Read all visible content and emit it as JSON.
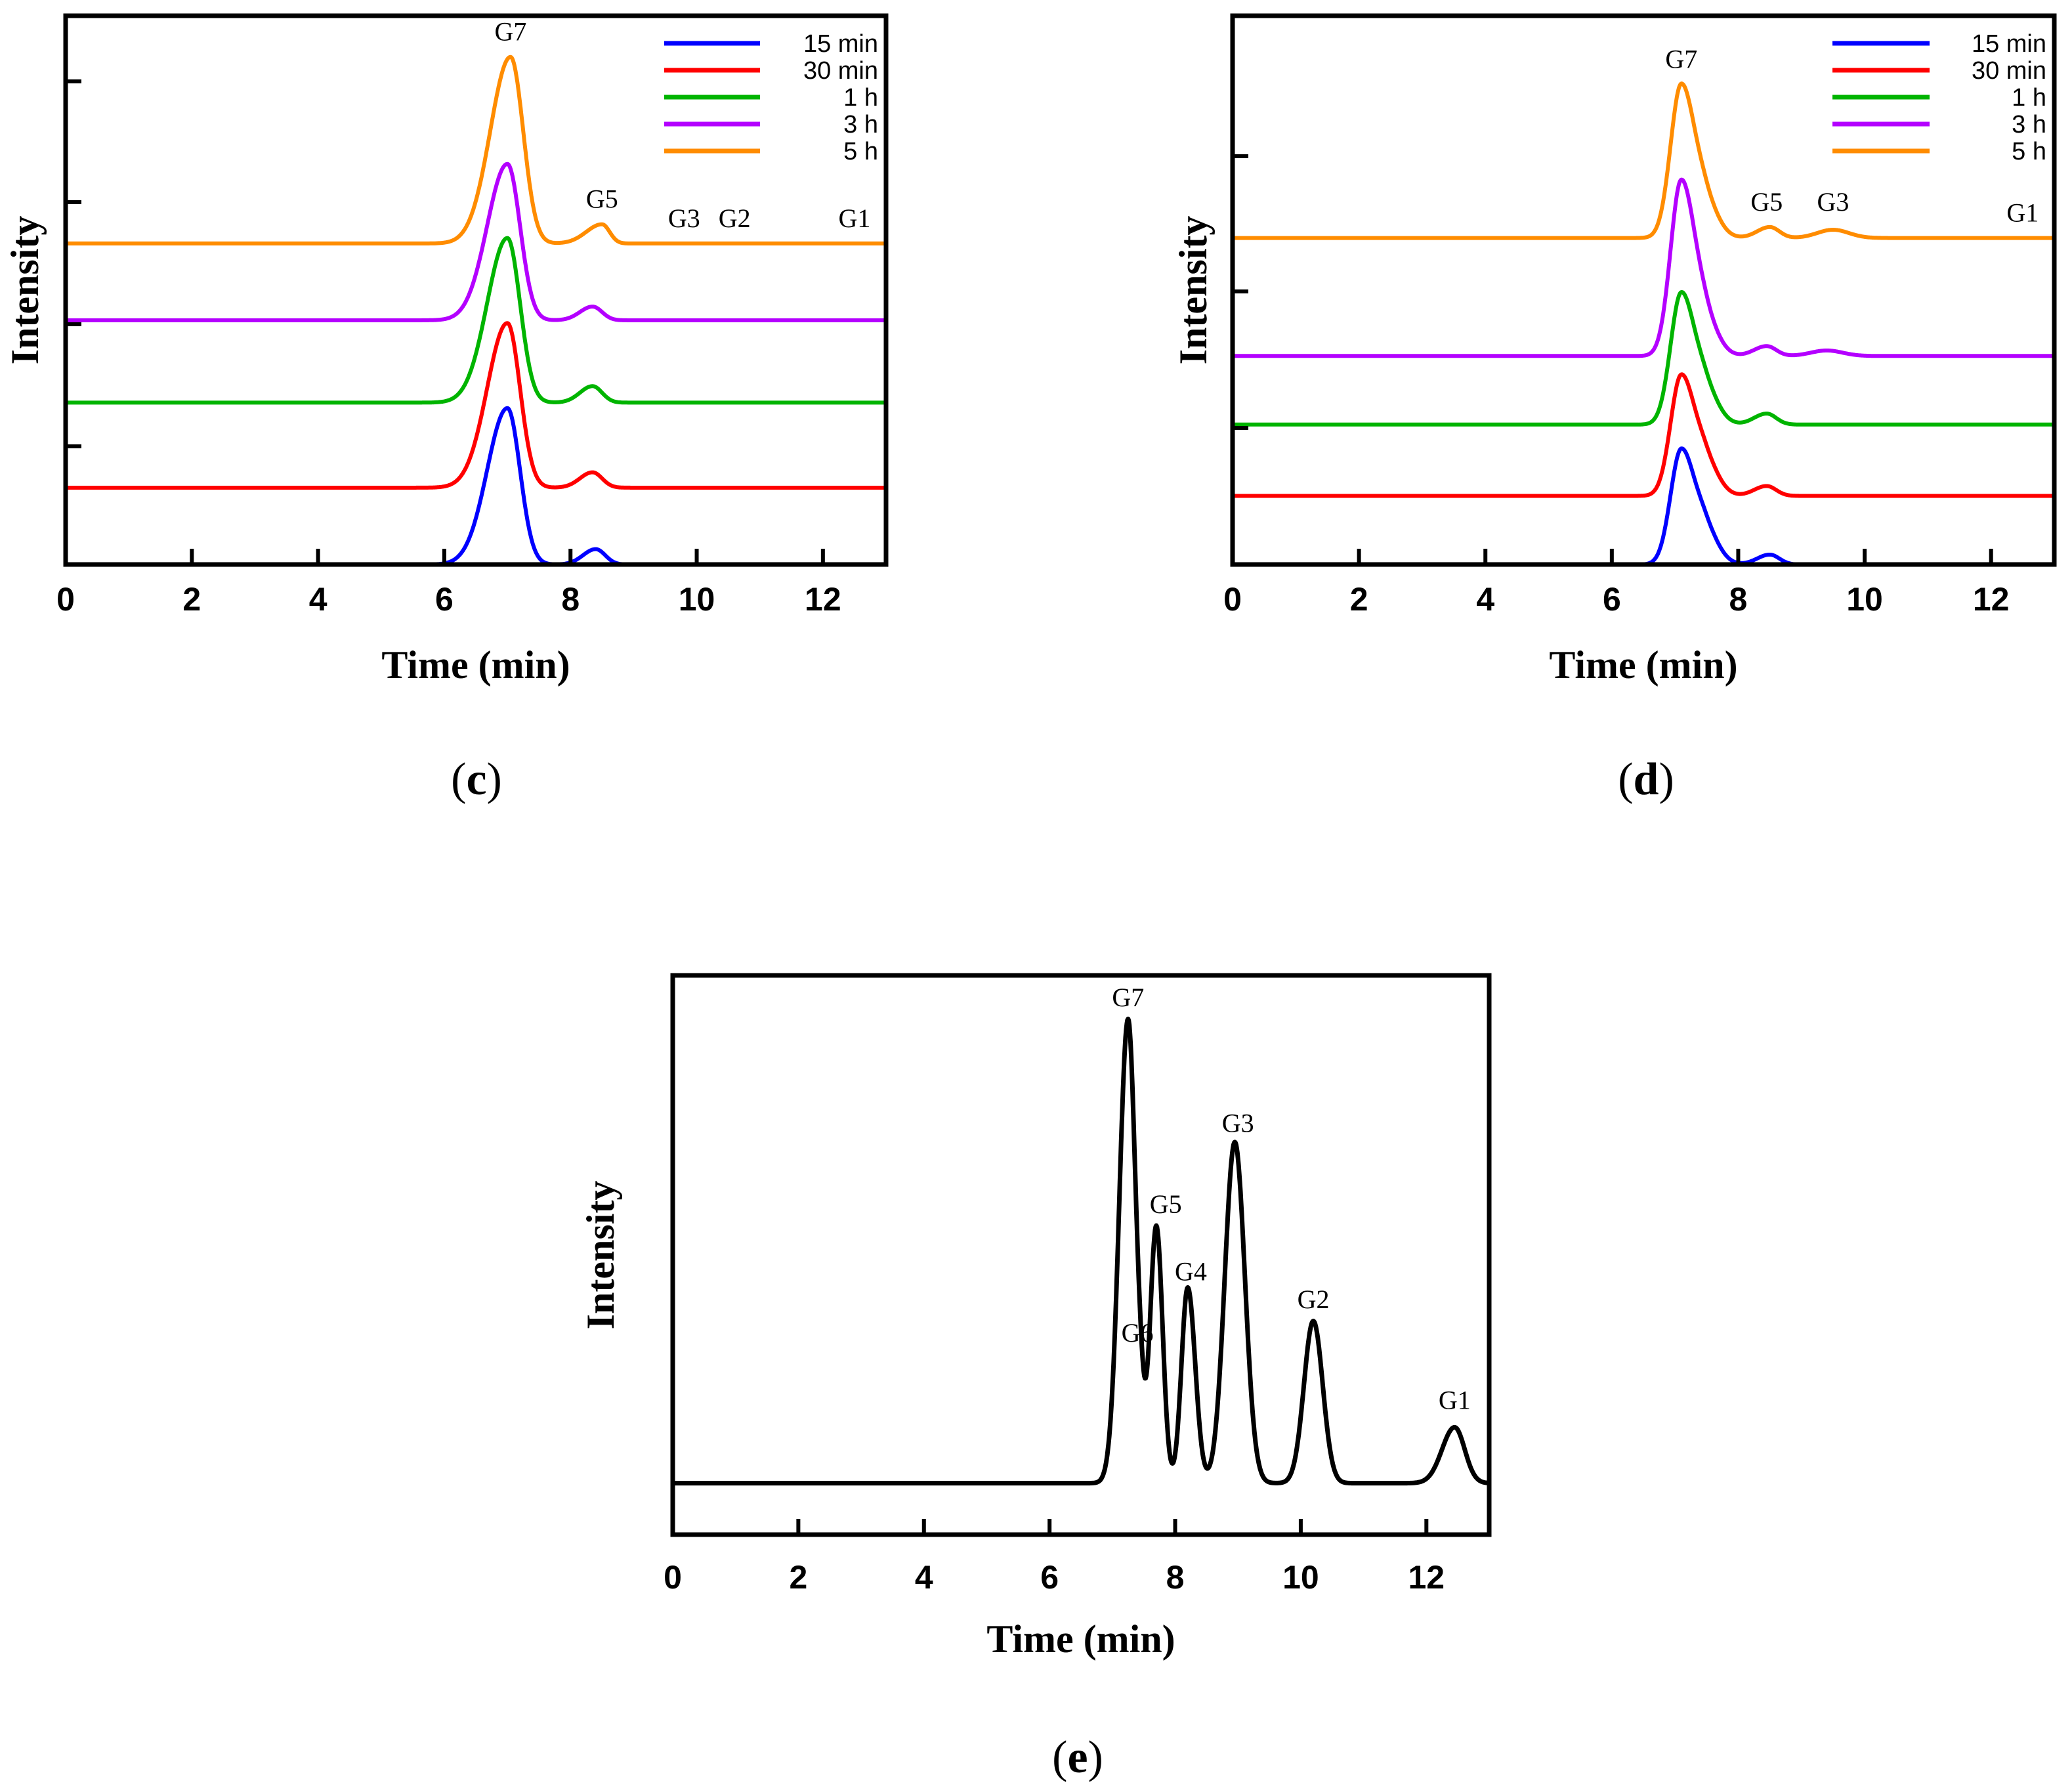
{
  "chart_data": [
    {
      "type": "line",
      "panel": "c",
      "caption_open": "(",
      "caption_letter": "c",
      "caption_close": ")",
      "xlabel": "Time (min)",
      "ylabel": "Intensity",
      "xlim": [
        0,
        13
      ],
      "ylim": [
        0,
        1
      ],
      "xticks": [
        0,
        2,
        4,
        6,
        8,
        10,
        12
      ],
      "legend_position": "top-right",
      "series": [
        {
          "name": "15 min",
          "color": "#0000ff",
          "baseline": 0.0,
          "peaks": [
            {
              "t": 7.0,
              "h": 0.285,
              "wl": 0.32,
              "wr": 0.2
            },
            {
              "t": 8.4,
              "h": 0.028,
              "wl": 0.2,
              "wr": 0.15
            }
          ]
        },
        {
          "name": "30 min",
          "color": "#ff0000",
          "baseline": 0.14,
          "peaks": [
            {
              "t": 7.0,
              "h": 0.3,
              "wl": 0.32,
              "wr": 0.2
            },
            {
              "t": 8.35,
              "h": 0.028,
              "wl": 0.2,
              "wr": 0.15
            }
          ]
        },
        {
          "name": "1 h",
          "color": "#00b400",
          "baseline": 0.295,
          "peaks": [
            {
              "t": 7.0,
              "h": 0.3,
              "wl": 0.32,
              "wr": 0.2
            },
            {
              "t": 8.35,
              "h": 0.03,
              "wl": 0.2,
              "wr": 0.15
            }
          ]
        },
        {
          "name": "3 h",
          "color": "#b400ff",
          "baseline": 0.445,
          "peaks": [
            {
              "t": 7.0,
              "h": 0.285,
              "wl": 0.32,
              "wr": 0.2
            },
            {
              "t": 8.35,
              "h": 0.025,
              "wl": 0.2,
              "wr": 0.15
            }
          ]
        },
        {
          "name": "5 h",
          "color": "#ff8c00",
          "baseline": 0.585,
          "peaks": [
            {
              "t": 7.05,
              "h": 0.34,
              "wl": 0.32,
              "wr": 0.2
            },
            {
              "t": 8.5,
              "h": 0.035,
              "wl": 0.25,
              "wr": 0.12
            }
          ]
        }
      ],
      "annotations": [
        {
          "text": "G7",
          "x": 7.05,
          "y": 0.955
        },
        {
          "text": "G5",
          "x": 8.5,
          "y": 0.65
        },
        {
          "text": "G3",
          "x": 9.8,
          "y": 0.615
        },
        {
          "text": "G2",
          "x": 10.6,
          "y": 0.615
        },
        {
          "text": "G1",
          "x": 12.5,
          "y": 0.615
        }
      ]
    },
    {
      "type": "line",
      "panel": "d",
      "caption_open": "(",
      "caption_letter": "d",
      "caption_close": ")",
      "xlabel": "Time (min)",
      "ylabel": "Intensity",
      "xlim": [
        0,
        13
      ],
      "ylim": [
        0,
        1
      ],
      "xticks": [
        0,
        2,
        4,
        6,
        8,
        10,
        12
      ],
      "legend_position": "top-right",
      "series": [
        {
          "name": "15 min",
          "color": "#0000ff",
          "baseline": 0.0,
          "peaks": [
            {
              "t": 7.1,
              "h": 0.21,
              "wl": 0.17,
              "wr": 0.22
            },
            {
              "t": 7.5,
              "h": 0.05,
              "wl": 0.15,
              "wr": 0.2
            },
            {
              "t": 8.5,
              "h": 0.018,
              "wl": 0.2,
              "wr": 0.15
            }
          ]
        },
        {
          "name": "30 min",
          "color": "#ff0000",
          "baseline": 0.125,
          "peaks": [
            {
              "t": 7.1,
              "h": 0.22,
              "wl": 0.17,
              "wr": 0.22
            },
            {
              "t": 7.5,
              "h": 0.05,
              "wl": 0.15,
              "wr": 0.2
            },
            {
              "t": 8.45,
              "h": 0.018,
              "wl": 0.2,
              "wr": 0.15
            }
          ]
        },
        {
          "name": "1 h",
          "color": "#00b400",
          "baseline": 0.255,
          "peaks": [
            {
              "t": 7.1,
              "h": 0.24,
              "wl": 0.17,
              "wr": 0.22
            },
            {
              "t": 7.5,
              "h": 0.05,
              "wl": 0.15,
              "wr": 0.2
            },
            {
              "t": 8.45,
              "h": 0.02,
              "wl": 0.2,
              "wr": 0.15
            }
          ]
        },
        {
          "name": "3 h",
          "color": "#b400ff",
          "baseline": 0.38,
          "peaks": [
            {
              "t": 7.1,
              "h": 0.32,
              "wl": 0.17,
              "wr": 0.22
            },
            {
              "t": 7.5,
              "h": 0.05,
              "wl": 0.15,
              "wr": 0.2
            },
            {
              "t": 8.45,
              "h": 0.018,
              "wl": 0.2,
              "wr": 0.15
            },
            {
              "t": 9.4,
              "h": 0.01,
              "wl": 0.25,
              "wr": 0.25
            }
          ]
        },
        {
          "name": "5 h",
          "color": "#ff8c00",
          "baseline": 0.595,
          "peaks": [
            {
              "t": 7.1,
              "h": 0.28,
              "wl": 0.17,
              "wr": 0.22
            },
            {
              "t": 7.5,
              "h": 0.05,
              "wl": 0.15,
              "wr": 0.2
            },
            {
              "t": 8.5,
              "h": 0.02,
              "wl": 0.2,
              "wr": 0.15
            },
            {
              "t": 9.5,
              "h": 0.015,
              "wl": 0.25,
              "wr": 0.25
            }
          ]
        }
      ],
      "annotations": [
        {
          "text": "G7",
          "x": 7.1,
          "y": 0.905
        },
        {
          "text": "G5",
          "x": 8.45,
          "y": 0.645
        },
        {
          "text": "G3",
          "x": 9.5,
          "y": 0.645
        },
        {
          "text": "G1",
          "x": 12.5,
          "y": 0.625
        }
      ]
    },
    {
      "type": "line",
      "panel": "e",
      "caption_open": "(",
      "caption_letter": "e",
      "caption_close": ")",
      "xlabel": "Time (min)",
      "ylabel": "Intensity",
      "xlim": [
        0,
        13
      ],
      "ylim": [
        0,
        1
      ],
      "xticks": [
        0,
        2,
        4,
        6,
        8,
        10,
        12
      ],
      "series": [
        {
          "name": "",
          "color": "#000000",
          "baseline": 0.092,
          "peaks": [
            {
              "t": 7.25,
              "h": 0.83,
              "wl": 0.14,
              "wr": 0.12
            },
            {
              "t": 7.45,
              "h": 0.06,
              "wl": 0.06,
              "wr": 0.06
            },
            {
              "t": 7.7,
              "h": 0.46,
              "wl": 0.1,
              "wr": 0.1
            },
            {
              "t": 8.2,
              "h": 0.35,
              "wl": 0.1,
              "wr": 0.12
            },
            {
              "t": 8.95,
              "h": 0.61,
              "wl": 0.16,
              "wr": 0.16
            },
            {
              "t": 10.2,
              "h": 0.29,
              "wl": 0.15,
              "wr": 0.15
            },
            {
              "t": 12.45,
              "h": 0.1,
              "wl": 0.2,
              "wr": 0.16
            }
          ]
        }
      ],
      "annotations": [
        {
          "text": "G7",
          "x": 7.25,
          "y": 0.945
        },
        {
          "text": "G6",
          "x": 7.4,
          "y": 0.345
        },
        {
          "text": "G5",
          "x": 7.85,
          "y": 0.575
        },
        {
          "text": "G4",
          "x": 8.25,
          "y": 0.455
        },
        {
          "text": "G3",
          "x": 9.0,
          "y": 0.72
        },
        {
          "text": "G2",
          "x": 10.2,
          "y": 0.405
        },
        {
          "text": "G1",
          "x": 12.45,
          "y": 0.225
        }
      ]
    }
  ]
}
